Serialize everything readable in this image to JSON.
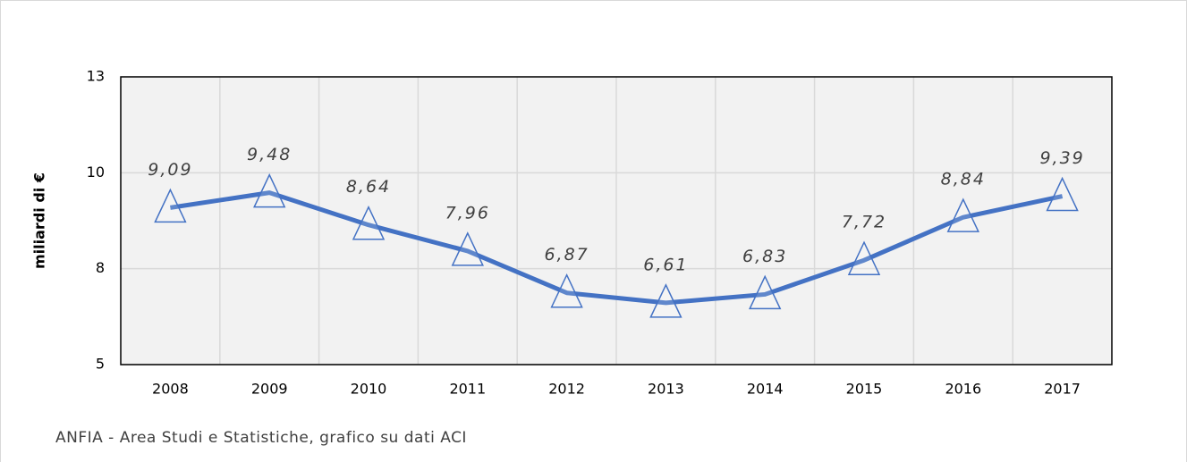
{
  "chart_data": {
    "type": "line",
    "y_label": "miliardi di €",
    "source": "ANFIA - Area Studi e Statistiche, grafico su dati ACI",
    "categories": [
      "2008",
      "2009",
      "2010",
      "2011",
      "2012",
      "2013",
      "2014",
      "2015",
      "2016",
      "2017"
    ],
    "series": [
      {
        "color": "#4472c4",
        "values": [
          9.09,
          9.48,
          8.64,
          7.96,
          6.87,
          6.61,
          6.83,
          7.72,
          8.84,
          9.39
        ],
        "value_labels": [
          "9,09",
          "9,48",
          "8,64",
          "7,96",
          "6,87",
          "6,61",
          "6,83",
          "7,72",
          "8,84",
          "9,39"
        ]
      }
    ],
    "ylim": [
      5,
      12.5
    ],
    "yticks": [
      5,
      {
        "value": 7.5,
        "label": "8"
      },
      10,
      {
        "value": 12.5,
        "label": "13"
      }
    ],
    "grid": true
  }
}
